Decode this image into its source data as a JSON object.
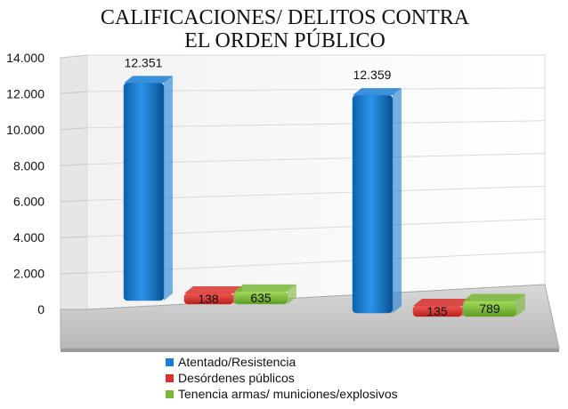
{
  "chart_data": {
    "type": "bar",
    "title": "CALIFICACIONES/ DELITOS CONTRA EL ORDEN PÚBLICO",
    "title_lines": [
      "CALIFICACIONES/ DELITOS CONTRA",
      "EL ORDEN PÚBLICO"
    ],
    "categories": [
      "",
      ""
    ],
    "series": [
      {
        "name": "Atentado/Resistencia",
        "values": [
          12351,
          12359
        ],
        "labels": [
          "12.351",
          "12.359"
        ],
        "color": "#1a7fd4"
      },
      {
        "name": "Desórdenes públicos",
        "values": [
          138,
          135
        ],
        "labels": [
          "138",
          "135"
        ],
        "color": "#d9322e"
      },
      {
        "name": "Tenencia armas/ municiones/explosivos",
        "values": [
          635,
          789
        ],
        "labels": [
          "635",
          "789"
        ],
        "color": "#7ab83a"
      }
    ],
    "ylim": [
      0,
      14000
    ],
    "yticks": [
      0,
      2000,
      4000,
      6000,
      8000,
      10000,
      12000,
      14000
    ],
    "ytick_labels": [
      "0",
      "2.000",
      "4.000",
      "6.000",
      "8.000",
      "10.000",
      "12.000",
      "14.000"
    ],
    "grid": true,
    "legend_position": "bottom",
    "style": "3d-bars"
  }
}
